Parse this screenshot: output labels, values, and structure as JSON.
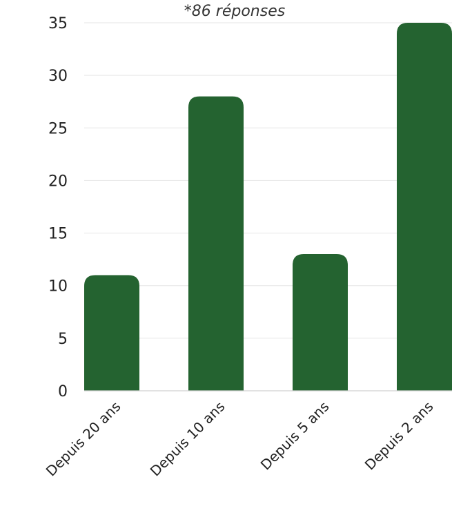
{
  "colors": {
    "bar": "#246330",
    "grid": "#e6e6e6",
    "text": "#222222"
  },
  "chart_data": {
    "type": "bar",
    "title": "",
    "subtitle": "*86 réponses",
    "xlabel": "",
    "ylabel": "",
    "categories": [
      "Depuis 20 ans",
      "Depuis 10 ans",
      "Depuis 5 ans",
      "Depuis 2 ans"
    ],
    "values": [
      11,
      28,
      13,
      35
    ],
    "ylim": [
      0,
      35
    ],
    "yticks": [
      "0",
      "5",
      "10",
      "15",
      "20",
      "25",
      "30",
      "35"
    ],
    "grid": true,
    "legend": "none"
  }
}
